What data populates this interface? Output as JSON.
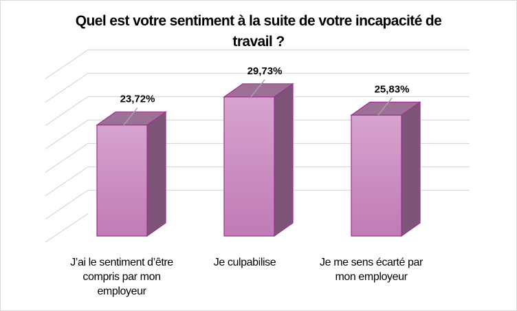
{
  "chart_data": {
    "type": "bar",
    "title": "Quel est votre sentiment à la suite de votre incapacité de travail ?",
    "title_lines": [
      "Quel est votre sentiment à la suite de votre incapacité de",
      "travail ?"
    ],
    "categories": [
      "J’ai le sentiment d’être compris par mon employeur",
      "Je culpabilise",
      "Je me sens écarté par mon employeur"
    ],
    "category_lines": [
      [
        "J’ai le sentiment d’être",
        "compris par mon",
        "employeur"
      ],
      [
        "Je culpabilise"
      ],
      [
        "Je me sens écarté par",
        "mon employeur"
      ]
    ],
    "values": [
      23.72,
      29.73,
      25.83
    ],
    "data_labels": [
      "23,72%",
      "29,73%",
      "25,83%"
    ],
    "unit": "%",
    "xlabel": "",
    "ylabel": "",
    "ylim": [
      0,
      35
    ],
    "grid": true,
    "gridline_step": 5,
    "style": "3d-column",
    "colors": {
      "front_top": "#d7a3cf",
      "front_bottom": "#c07bb5",
      "side": "#7e5478",
      "top": "#9d7096",
      "edge": "#9b2f92",
      "grid": "#d9d9d9",
      "leader": "#a6a6a6"
    }
  }
}
